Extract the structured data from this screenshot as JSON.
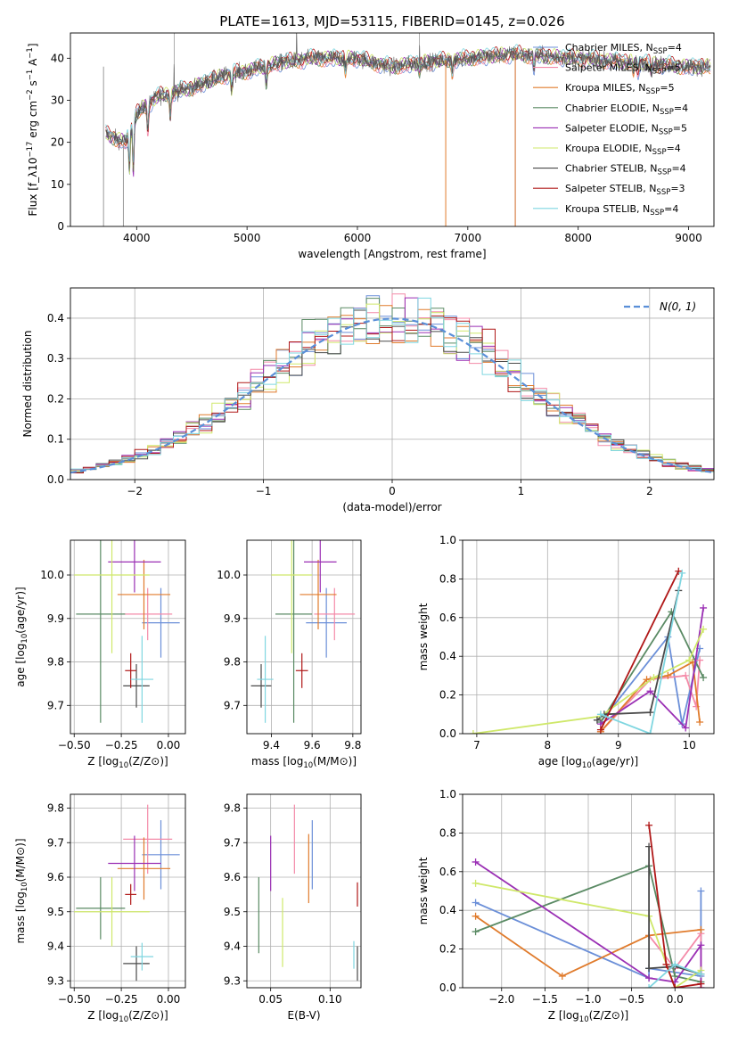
{
  "page_title": "PLATE=1613, MJD=53115, FIBERID=0145, z=0.026",
  "colors": {
    "chabrier_miles": "#6b8fd8",
    "salpeter_miles": "#f48aa8",
    "kroupa_miles": "#e07b2c",
    "chabrier_elodie": "#5a8a64",
    "salpeter_elodie": "#9a2fb4",
    "kroupa_elodie": "#cfe86a",
    "chabrier_stelib": "#4a4a4a",
    "salpeter_stelib": "#b01818",
    "kroupa_stelib": "#7fd6e0",
    "gaussian": "#5a8fd8",
    "grid": "#b0b0b0"
  },
  "chart_data": [
    {
      "id": "spectrum",
      "type": "line",
      "title": "PLATE=1613, MJD=53115, FIBERID=0145, z=0.026",
      "xlabel": "wavelength [Angstrom, rest frame]",
      "ylabel": "Flux [f_λ10^-17 erg cm^-2 s^-1 A^-1]",
      "xlim": [
        3400,
        9230
      ],
      "ylim": [
        0,
        46
      ],
      "xticks": [
        4000,
        5000,
        6000,
        7000,
        8000,
        9000
      ],
      "yticks": [
        0,
        10,
        20,
        30,
        40
      ],
      "grid": false,
      "legend_position": "top-right",
      "legend": [
        {
          "label": "Chabrier MILES, N_SSP=4",
          "color": "#6b8fd8"
        },
        {
          "label": "Salpeter MILES, N_SSP=5",
          "color": "#f48aa8"
        },
        {
          "label": "Kroupa MILES, N_SSP=5",
          "color": "#e07b2c"
        },
        {
          "label": "Chabrier ELODIE, N_SSP=4",
          "color": "#5a8a64"
        },
        {
          "label": "Salpeter ELODIE, N_SSP=5",
          "color": "#9a2fb4"
        },
        {
          "label": "Kroupa ELODIE, N_SSP=4",
          "color": "#cfe86a"
        },
        {
          "label": "Chabrier STELIB, N_SSP=4",
          "color": "#4a4a4a"
        },
        {
          "label": "Salpeter STELIB, N_SSP=3",
          "color": "#b01818"
        },
        {
          "label": "Kroupa STELIB, N_SSP=4",
          "color": "#7fd6e0"
        }
      ],
      "continuum": [
        [
          3720,
          22
        ],
        [
          3900,
          20
        ],
        [
          4000,
          27
        ],
        [
          4200,
          31
        ],
        [
          4500,
          33
        ],
        [
          4800,
          36
        ],
        [
          5000,
          37
        ],
        [
          5300,
          39
        ],
        [
          5600,
          40
        ],
        [
          6000,
          40
        ],
        [
          6300,
          38
        ],
        [
          6600,
          39
        ],
        [
          7000,
          40
        ],
        [
          7400,
          41
        ],
        [
          8000,
          40
        ],
        [
          8500,
          39
        ],
        [
          9000,
          38
        ],
        [
          9200,
          38
        ]
      ],
      "absorption_lines": [
        [
          3935,
          9
        ],
        [
          3970,
          12
        ],
        [
          4101,
          6
        ],
        [
          4305,
          5
        ],
        [
          4861,
          4
        ],
        [
          5175,
          4
        ],
        [
          5892,
          3
        ],
        [
          6563,
          2
        ],
        [
          6860,
          3
        ],
        [
          7600,
          3
        ],
        [
          8500,
          2
        ],
        [
          8542,
          2
        ],
        [
          8662,
          2
        ]
      ],
      "emission_spikes": [
        [
          4340,
          6
        ],
        [
          5450,
          6
        ],
        [
          6563,
          6
        ]
      ],
      "data_dropouts": [
        [
          3700,
          0
        ],
        [
          3880,
          0
        ],
        [
          6800,
          0
        ],
        [
          7430,
          0
        ]
      ]
    },
    {
      "id": "residuals",
      "type": "histogram",
      "xlabel": "(data-model)/error",
      "ylabel": "Normed distribution",
      "xlim": [
        -2.5,
        2.5
      ],
      "ylim": [
        0,
        0.475
      ],
      "xticks": [
        -2,
        -1,
        0,
        1,
        2
      ],
      "yticks": [
        0.0,
        0.1,
        0.2,
        0.3,
        0.4
      ],
      "grid": true,
      "bins": 50,
      "legend_position": "top-right",
      "legend": [
        {
          "label": "N(0, 1)",
          "style": "dashed",
          "color": "#5a8fd8"
        }
      ],
      "gaussian": {
        "mean": 0,
        "sigma": 1
      }
    },
    {
      "id": "age-vs-Z",
      "type": "scatter",
      "xlabel": "Z [log10(Z/Z⊙)]",
      "ylabel": "age [log10(age/yr)]",
      "xlim": [
        -0.52,
        0.09
      ],
      "ylim": [
        9.635,
        10.08
      ],
      "xticks": [
        -0.5,
        -0.25,
        0.0
      ],
      "yticks": [
        9.7,
        9.8,
        9.9,
        10.0
      ],
      "grid": true,
      "points": [
        {
          "series": "Chabrier MILES",
          "x": -0.04,
          "y": 9.89,
          "xerr": 0.1,
          "yerr": 0.08
        },
        {
          "series": "Salpeter MILES",
          "x": -0.11,
          "y": 9.91,
          "xerr": 0.13,
          "yerr": 0.06
        },
        {
          "series": "Kroupa MILES",
          "x": -0.13,
          "y": 9.955,
          "xerr": 0.14,
          "yerr": 0.08
        },
        {
          "series": "Chabrier ELODIE",
          "x": -0.36,
          "y": 9.91,
          "xerr": 0.13,
          "yerr": 0.25
        },
        {
          "series": "Salpeter ELODIE",
          "x": -0.18,
          "y": 10.03,
          "xerr": 0.14,
          "yerr": 0.07
        },
        {
          "series": "Kroupa ELODIE",
          "x": -0.3,
          "y": 10.0,
          "xerr": 0.2,
          "yerr": 0.18
        },
        {
          "series": "Chabrier STELIB",
          "x": -0.17,
          "y": 9.745,
          "xerr": 0.07,
          "yerr": 0.05
        },
        {
          "series": "Salpeter STELIB",
          "x": -0.2,
          "y": 9.78,
          "xerr": 0.03,
          "yerr": 0.04
        },
        {
          "series": "Kroupa STELIB",
          "x": -0.14,
          "y": 9.76,
          "xerr": 0.06,
          "yerr": 0.1
        }
      ]
    },
    {
      "id": "age-vs-mass",
      "type": "scatter",
      "xlabel": "mass [log10(M/M⊙)]",
      "ylabel": "",
      "xlim": [
        9.28,
        9.84
      ],
      "ylim": [
        9.635,
        10.08
      ],
      "xticks": [
        9.4,
        9.6,
        9.8
      ],
      "yticks": [
        9.7,
        9.8,
        9.9,
        10.0
      ],
      "grid": true,
      "points": [
        {
          "series": "Chabrier MILES",
          "x": 9.67,
          "y": 9.89,
          "xerr": 0.1,
          "yerr": 0.08
        },
        {
          "series": "Salpeter MILES",
          "x": 9.71,
          "y": 9.91,
          "xerr": 0.1,
          "yerr": 0.06
        },
        {
          "series": "Kroupa MILES",
          "x": 9.63,
          "y": 9.955,
          "xerr": 0.09,
          "yerr": 0.08
        },
        {
          "series": "Chabrier ELODIE",
          "x": 9.51,
          "y": 9.91,
          "xerr": 0.09,
          "yerr": 0.25
        },
        {
          "series": "Salpeter ELODIE",
          "x": 9.64,
          "y": 10.03,
          "xerr": 0.08,
          "yerr": 0.07
        },
        {
          "series": "Kroupa ELODIE",
          "x": 9.5,
          "y": 10.0,
          "xerr": 0.1,
          "yerr": 0.18
        },
        {
          "series": "Chabrier STELIB",
          "x": 9.35,
          "y": 9.745,
          "xerr": 0.05,
          "yerr": 0.05
        },
        {
          "series": "Salpeter STELIB",
          "x": 9.55,
          "y": 9.78,
          "xerr": 0.03,
          "yerr": 0.04
        },
        {
          "series": "Kroupa STELIB",
          "x": 9.37,
          "y": 9.76,
          "xerr": 0.04,
          "yerr": 0.1
        }
      ]
    },
    {
      "id": "weight-vs-age",
      "type": "line",
      "xlabel": "age [log10(age/yr)]",
      "ylabel": "mass weight",
      "xlim": [
        6.8,
        10.35
      ],
      "ylim": [
        0,
        1.0
      ],
      "xticks": [
        7,
        8,
        9,
        10
      ],
      "yticks": [
        0.0,
        0.2,
        0.4,
        0.6,
        0.8,
        1.0
      ],
      "grid": true,
      "series": [
        {
          "name": "Chabrier MILES",
          "color": "#6b8fd8",
          "points": [
            [
              8.75,
              0.06
            ],
            [
              9.7,
              0.5
            ],
            [
              9.9,
              0.05
            ],
            [
              10.15,
              0.44
            ]
          ]
        },
        {
          "name": "Salpeter MILES",
          "color": "#f48aa8",
          "points": [
            [
              8.75,
              0.01
            ],
            [
              9.45,
              0.28
            ],
            [
              9.95,
              0.3
            ],
            [
              10.1,
              0.14
            ],
            [
              10.15,
              0.38
            ]
          ]
        },
        {
          "name": "Kroupa MILES",
          "color": "#e07b2c",
          "points": [
            [
              8.75,
              0.01
            ],
            [
              9.4,
              0.28
            ],
            [
              9.7,
              0.3
            ],
            [
              10.05,
              0.37
            ],
            [
              10.15,
              0.06
            ]
          ]
        },
        {
          "name": "Chabrier ELODIE",
          "color": "#5a8a64",
          "points": [
            [
              8.75,
              0.06
            ],
            [
              9.75,
              0.63
            ],
            [
              10.2,
              0.29
            ]
          ]
        },
        {
          "name": "Salpeter ELODIE",
          "color": "#9a2fb4",
          "points": [
            [
              8.75,
              0.05
            ],
            [
              9.45,
              0.22
            ],
            [
              9.95,
              0.03
            ],
            [
              10.2,
              0.65
            ]
          ]
        },
        {
          "name": "Kroupa ELODIE",
          "color": "#cfe86a",
          "points": [
            [
              6.95,
              0.0
            ],
            [
              8.75,
              0.09
            ],
            [
              9.5,
              0.29
            ],
            [
              10.0,
              0.38
            ],
            [
              10.2,
              0.54
            ]
          ]
        },
        {
          "name": "Chabrier STELIB",
          "color": "#4a4a4a",
          "points": [
            [
              8.7,
              0.07
            ],
            [
              8.8,
              0.1
            ],
            [
              9.45,
              0.11
            ],
            [
              9.85,
              0.74
            ]
          ]
        },
        {
          "name": "Salpeter STELIB",
          "color": "#b01818",
          "points": [
            [
              8.75,
              0.02
            ],
            [
              9.85,
              0.84
            ]
          ]
        },
        {
          "name": "Kroupa STELIB",
          "color": "#7fd6e0",
          "points": [
            [
              8.75,
              0.1
            ],
            [
              9.45,
              0.0
            ],
            [
              9.9,
              0.83
            ]
          ]
        }
      ]
    },
    {
      "id": "mass-vs-Z",
      "type": "scatter",
      "xlabel": "Z [log10(Z/Z⊙)]",
      "ylabel": "mass [log10(M/M⊙)]",
      "xlim": [
        -0.52,
        0.09
      ],
      "ylim": [
        9.28,
        9.84
      ],
      "xticks": [
        -0.5,
        -0.25,
        0.0
      ],
      "yticks": [
        9.3,
        9.4,
        9.5,
        9.6,
        9.7,
        9.8
      ],
      "grid": true,
      "points": [
        {
          "series": "Chabrier MILES",
          "x": -0.04,
          "y": 9.665,
          "xerr": 0.1,
          "yerr": 0.1
        },
        {
          "series": "Salpeter MILES",
          "x": -0.11,
          "y": 9.71,
          "xerr": 0.13,
          "yerr": 0.1
        },
        {
          "series": "Kroupa MILES",
          "x": -0.13,
          "y": 9.625,
          "xerr": 0.14,
          "yerr": 0.09
        },
        {
          "series": "Chabrier ELODIE",
          "x": -0.36,
          "y": 9.51,
          "xerr": 0.13,
          "yerr": 0.09
        },
        {
          "series": "Salpeter ELODIE",
          "x": -0.18,
          "y": 9.64,
          "xerr": 0.14,
          "yerr": 0.08
        },
        {
          "series": "Kroupa ELODIE",
          "x": -0.3,
          "y": 9.5,
          "xerr": 0.2,
          "yerr": 0.1
        },
        {
          "series": "Chabrier STELIB",
          "x": -0.17,
          "y": 9.35,
          "xerr": 0.07,
          "yerr": 0.05
        },
        {
          "series": "Salpeter STELIB",
          "x": -0.2,
          "y": 9.55,
          "xerr": 0.03,
          "yerr": 0.03
        },
        {
          "series": "Kroupa STELIB",
          "x": -0.14,
          "y": 9.37,
          "xerr": 0.06,
          "yerr": 0.04
        }
      ]
    },
    {
      "id": "mass-vs-EBV",
      "type": "scatter",
      "xlabel": "E(B-V)",
      "ylabel": "",
      "xlim": [
        0.03,
        0.126
      ],
      "ylim": [
        9.28,
        9.84
      ],
      "xticks": [
        0.05,
        0.1
      ],
      "yticks": [
        9.3,
        9.4,
        9.5,
        9.6,
        9.7,
        9.8
      ],
      "grid": true,
      "points": [
        {
          "series": "Chabrier MILES",
          "x": 0.085,
          "y": 9.665,
          "yerr": 0.1
        },
        {
          "series": "Salpeter MILES",
          "x": 0.07,
          "y": 9.71,
          "yerr": 0.1
        },
        {
          "series": "Kroupa MILES",
          "x": 0.082,
          "y": 9.625,
          "yerr": 0.1
        },
        {
          "series": "Chabrier ELODIE",
          "x": 0.04,
          "y": 9.49,
          "yerr": 0.11
        },
        {
          "series": "Salpeter ELODIE",
          "x": 0.05,
          "y": 9.64,
          "yerr": 0.08
        },
        {
          "series": "Kroupa ELODIE",
          "x": 0.06,
          "y": 9.44,
          "yerr": 0.1
        },
        {
          "series": "Chabrier STELIB",
          "x": 0.123,
          "y": 9.35,
          "yerr": 0.05
        },
        {
          "series": "Salpeter STELIB",
          "x": 0.123,
          "y": 9.55,
          "yerr": 0.035
        },
        {
          "series": "Kroupa STELIB",
          "x": 0.12,
          "y": 9.375,
          "yerr": 0.04
        }
      ]
    },
    {
      "id": "weight-vs-Z",
      "type": "line",
      "xlabel": "Z [log10(Z/Z⊙)]",
      "ylabel": "mass weight",
      "xlim": [
        -2.45,
        0.45
      ],
      "ylim": [
        0,
        1.0
      ],
      "xticks": [
        -2.0,
        -1.5,
        -1.0,
        -0.5,
        0.0
      ],
      "yticks": [
        0.0,
        0.2,
        0.4,
        0.6,
        0.8,
        1.0
      ],
      "grid": true,
      "series": [
        {
          "name": "Chabrier MILES",
          "color": "#6b8fd8",
          "points": [
            [
              -2.3,
              0.44
            ],
            [
              -0.3,
              0.05
            ],
            [
              -0.3,
              0.1
            ],
            [
              0.3,
              0.06
            ],
            [
              0.3,
              0.5
            ]
          ]
        },
        {
          "name": "Salpeter MILES",
          "color": "#f48aa8",
          "points": [
            [
              -0.3,
              0.27
            ],
            [
              0.0,
              0.1
            ],
            [
              0.3,
              0.28
            ],
            [
              0.3,
              0.0
            ]
          ]
        },
        {
          "name": "Kroupa MILES",
          "color": "#e07b2c",
          "points": [
            [
              -2.3,
              0.37
            ],
            [
              -1.3,
              0.06
            ],
            [
              -0.3,
              0.27
            ],
            [
              0.3,
              0.3
            ]
          ]
        },
        {
          "name": "Chabrier ELODIE",
          "color": "#5a8a64",
          "points": [
            [
              -2.3,
              0.29
            ],
            [
              -0.3,
              0.63
            ],
            [
              0.0,
              0.06
            ],
            [
              0.3,
              0.03
            ]
          ]
        },
        {
          "name": "Salpeter ELODIE",
          "color": "#9a2fb4",
          "points": [
            [
              -2.3,
              0.65
            ],
            [
              -0.3,
              0.05
            ],
            [
              0.0,
              0.03
            ],
            [
              0.3,
              0.22
            ],
            [
              0.3,
              0.0
            ]
          ]
        },
        {
          "name": "Kroupa ELODIE",
          "color": "#cfe86a",
          "points": [
            [
              -2.3,
              0.54
            ],
            [
              -0.3,
              0.37
            ],
            [
              0.0,
              0.0
            ],
            [
              0.3,
              0.09
            ]
          ]
        },
        {
          "name": "Chabrier STELIB",
          "color": "#4a4a4a",
          "points": [
            [
              -0.3,
              0.73
            ],
            [
              -0.3,
              0.1
            ],
            [
              0.0,
              0.11
            ],
            [
              0.3,
              0.07
            ]
          ]
        },
        {
          "name": "Salpeter STELIB",
          "color": "#b01818",
          "points": [
            [
              -0.3,
              0.84
            ],
            [
              -0.1,
              0.12
            ],
            [
              0.0,
              0.0
            ],
            [
              0.3,
              0.02
            ]
          ]
        },
        {
          "name": "Kroupa STELIB",
          "color": "#7fd6e0",
          "points": [
            [
              -0.3,
              0.0
            ],
            [
              0.0,
              0.12
            ],
            [
              0.3,
              0.07
            ]
          ]
        }
      ]
    }
  ]
}
